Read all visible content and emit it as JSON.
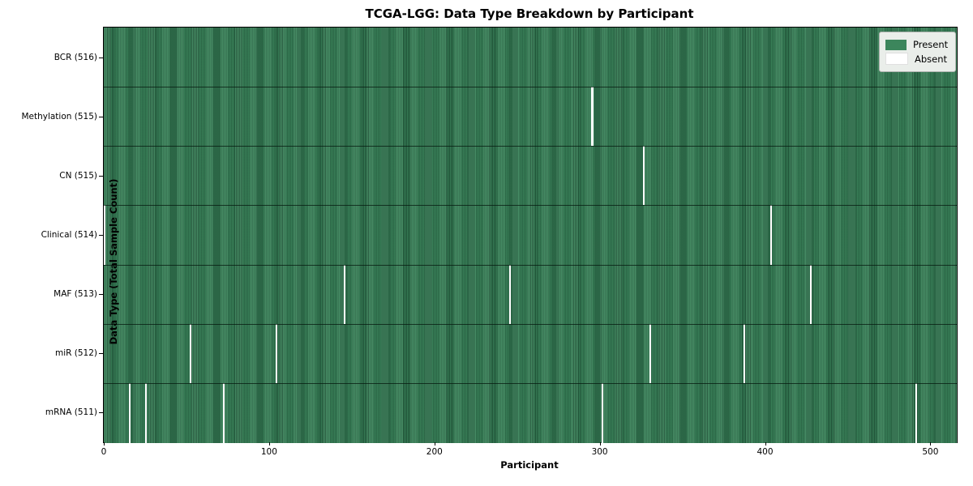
{
  "title": "TCGA-LGG: Data Type Breakdown by Participant",
  "xlabel": "Participant",
  "ylabel": "Data Type (Total Sample Count)",
  "colors": {
    "present": "#3c865c",
    "present_edge": "#205438",
    "absent": "#ffffff",
    "legend_bg": "#eaeeea",
    "frame": "#000000"
  },
  "chart_data": {
    "type": "heatmap",
    "title": "TCGA-LGG: Data Type Breakdown by Participant",
    "xlabel": "Participant",
    "ylabel": "Data Type (Total Sample Count)",
    "x_range": [
      0,
      516
    ],
    "n_participants": 516,
    "x_ticks": [
      "0",
      "100",
      "200",
      "300",
      "400",
      "500"
    ],
    "x_tick_values": [
      0,
      100,
      200,
      300,
      400,
      500
    ],
    "grid": false,
    "legend_position": "upper right",
    "legend_entries": [
      {
        "label": "Present",
        "color": "#3c865c"
      },
      {
        "label": "Absent",
        "color": "#ffffff"
      }
    ],
    "rows": [
      {
        "label": "BCR (516)",
        "data_type": "BCR",
        "present_count": 516,
        "absent_participants": []
      },
      {
        "label": "Methylation (515)",
        "data_type": "Methylation",
        "present_count": 515,
        "absent_participants": [
          295
        ]
      },
      {
        "label": "CN (515)",
        "data_type": "CN",
        "present_count": 515,
        "absent_participants": [
          326
        ]
      },
      {
        "label": "Clinical (514)",
        "data_type": "Clinical",
        "present_count": 514,
        "absent_participants": [
          0,
          403
        ]
      },
      {
        "label": "MAF (513)",
        "data_type": "MAF",
        "present_count": 513,
        "absent_participants": [
          145,
          245,
          427
        ]
      },
      {
        "label": "miR (512)",
        "data_type": "miR",
        "present_count": 512,
        "absent_participants": [
          52,
          104,
          330,
          387
        ]
      },
      {
        "label": "mRNA (511)",
        "data_type": "mRNA",
        "present_count": 511,
        "absent_participants": [
          15,
          25,
          72,
          301,
          491
        ]
      }
    ]
  }
}
